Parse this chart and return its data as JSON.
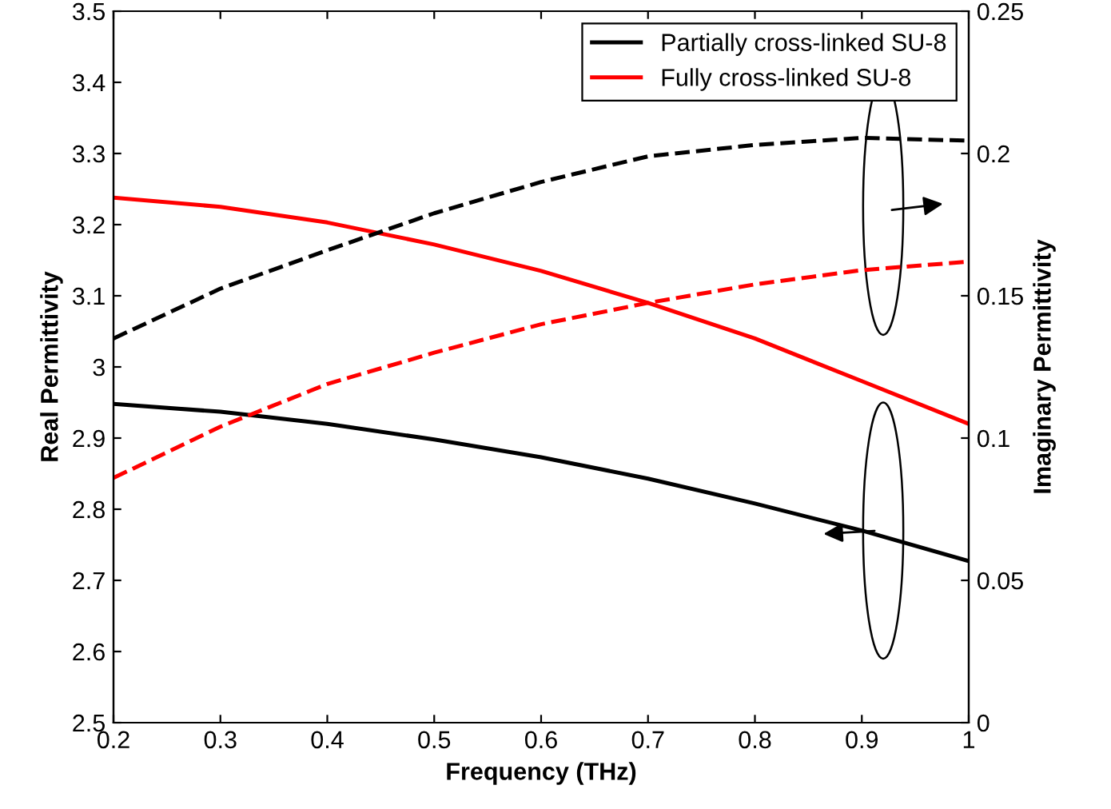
{
  "chart_data": {
    "type": "line",
    "xlabel": "Frequency (THz)",
    "ylabel": "Real Permittivity",
    "y2label": "Imaginary Permittivity",
    "x": [
      0.2,
      0.3,
      0.4,
      0.5,
      0.6,
      0.7,
      0.8,
      0.9,
      1.0
    ],
    "series": [
      {
        "name": "Partially cross-linked SU-8",
        "color": "#000000",
        "line_style": "solid",
        "values": [
          2.948,
          2.937,
          2.92,
          2.898,
          2.873,
          2.843,
          2.808,
          2.77,
          2.727
        ]
      },
      {
        "name": "Fully cross-linked SU-8",
        "color": "#ff0000",
        "line_style": "solid",
        "values": [
          3.238,
          3.225,
          3.203,
          3.172,
          3.135,
          3.09,
          3.04,
          2.98,
          2.92
        ]
      },
      {
        "color": "#000000",
        "line_style": "dashed",
        "axis": "y2",
        "values": [
          0.135,
          0.1525,
          0.166,
          0.179,
          0.19,
          0.199,
          0.203,
          0.2055,
          0.2045
        ]
      },
      {
        "color": "#ff0000",
        "line_style": "dashed",
        "axis": "y2",
        "values": [
          0.086,
          0.104,
          0.119,
          0.13,
          0.14,
          0.1475,
          0.154,
          0.159,
          0.162
        ]
      }
    ],
    "xlim": [
      0.2,
      1
    ],
    "xticks": [
      0.2,
      0.3,
      0.4,
      0.5,
      0.6,
      0.7,
      0.8,
      0.9,
      1
    ],
    "ylim": [
      2.5,
      3.5
    ],
    "yticks": [
      2.5,
      2.6,
      2.7,
      2.8,
      2.9,
      3,
      3.1,
      3.2,
      3.3,
      3.4,
      3.5
    ],
    "y2lim": [
      0,
      0.25
    ],
    "y2ticks": [
      0,
      0.05,
      0.1,
      0.15,
      0.2,
      0.25
    ],
    "legend": "top right",
    "grid": false
  }
}
